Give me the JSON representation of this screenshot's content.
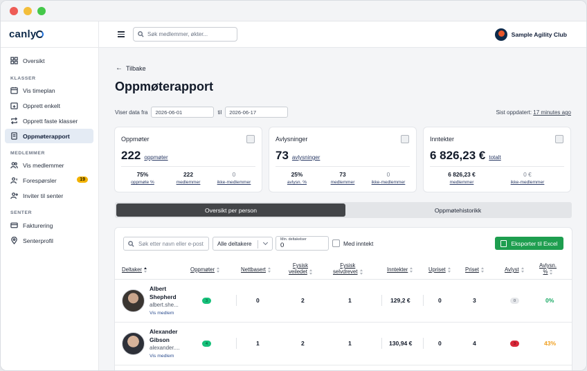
{
  "brand": {
    "logo_prefix": "canly",
    "accent": "#1e9e4f"
  },
  "sidebar": {
    "items_top": [
      {
        "label": "Oversikt",
        "icon": "grid-icon"
      }
    ],
    "sections": [
      {
        "label": "KLASSER",
        "items": [
          {
            "label": "Vis timeplan",
            "icon": "calendar-icon"
          },
          {
            "label": "Opprett enkelt",
            "icon": "calendar-plus-icon"
          },
          {
            "label": "Opprett faste klasser",
            "icon": "repeat-icon"
          },
          {
            "label": "Oppmøterapport",
            "icon": "report-icon",
            "active": true
          }
        ]
      },
      {
        "label": "MEDLEMMER",
        "items": [
          {
            "label": "Vis medlemmer",
            "icon": "users-icon"
          },
          {
            "label": "Forespørsler",
            "icon": "user-request-icon",
            "badge": "19"
          },
          {
            "label": "Inviter til senter",
            "icon": "user-plus-icon"
          }
        ]
      },
      {
        "label": "SENTER",
        "items": [
          {
            "label": "Fakturering",
            "icon": "credit-card-icon"
          },
          {
            "label": "Senterprofil",
            "icon": "location-icon"
          }
        ]
      }
    ]
  },
  "topbar": {
    "search_placeholder": "Søk medlemmer, økter...",
    "club_name": "Sample Agility Club"
  },
  "page": {
    "back_label": "Tilbake",
    "title": "Oppmøterapport",
    "range_label": "Viser data fra",
    "date_from": "2026-06-01",
    "range_to": "til",
    "date_to": "2026-06-17",
    "updated_label": "Sist oppdatert:",
    "updated_value": "17 minutes ago"
  },
  "cards": [
    {
      "title": "Oppmøter",
      "value": "222",
      "value_sub": "oppmøter",
      "stats": [
        {
          "v": "75%",
          "l": "oppmøte %"
        },
        {
          "v": "222",
          "l": "medlemmer"
        },
        {
          "v": "0",
          "l": "ikke-medlemmer",
          "muted": true
        }
      ]
    },
    {
      "title": "Avlysninger",
      "value": "73",
      "value_sub": "avlysninger",
      "stats": [
        {
          "v": "25%",
          "l": "avlysn. %"
        },
        {
          "v": "73",
          "l": "medlemmer"
        },
        {
          "v": "0",
          "l": "ikke-medlemmer",
          "muted": true
        }
      ]
    },
    {
      "title": "Inntekter",
      "value": "6 826,23 €",
      "value_sub": "totalt",
      "stats": [
        {
          "v": "6 826,23 €",
          "l": "medlemmer"
        },
        {
          "v": "0 €",
          "l": "ikke-medlemmer",
          "muted": true
        }
      ]
    }
  ],
  "tabs": {
    "active": "Oversikt per person",
    "inactive": "Oppmøtehistorikk"
  },
  "filters": {
    "search_placeholder": "Søk etter navn eller e-post",
    "select_value": "Alle deltakere",
    "min_label": "Min. deltakelser",
    "min_value": "0",
    "checkbox_label": "Med inntekt",
    "export_label": "Eksporter til Excel"
  },
  "table": {
    "headers": {
      "deltaker": "Deltaker",
      "oppmoter": "Oppmøter",
      "nettbasert": "Nettbasert",
      "fysisk_veiledet_1": "Fysisk",
      "fysisk_veiledet_2": "veiledet",
      "fysisk_selvdrevet_1": "Fysisk",
      "fysisk_selvdrevet_2": "selvdrevet",
      "inntekter": "Inntekter",
      "uprist": "Upriset",
      "priset": "Priset",
      "avlyst": "Avlyst",
      "avlysn_1": "Avlysn.",
      "avlysn_2": "%"
    },
    "rows": [
      {
        "name": "Albert Shepherd",
        "email": "albert.she...",
        "link": "Vis medlem",
        "oppmoter": "3",
        "nettbasert": "0",
        "veiledet": "2",
        "selvdrevet": "1",
        "inntekter": "129,2 €",
        "uprist": "0",
        "priset": "3",
        "avlyst": "0",
        "avlysn_pct": "0%",
        "pct_color": "#16a862"
      },
      {
        "name": "Alexander Gibson",
        "email": "alexander....",
        "link": "Vis medlem",
        "oppmoter": "4",
        "nettbasert": "1",
        "veiledet": "2",
        "selvdrevet": "1",
        "inntekter": "130,94 €",
        "uprist": "0",
        "priset": "4",
        "avlyst": "3",
        "avlysn_pct": "43%",
        "pct_color": "#f0a020"
      }
    ]
  }
}
